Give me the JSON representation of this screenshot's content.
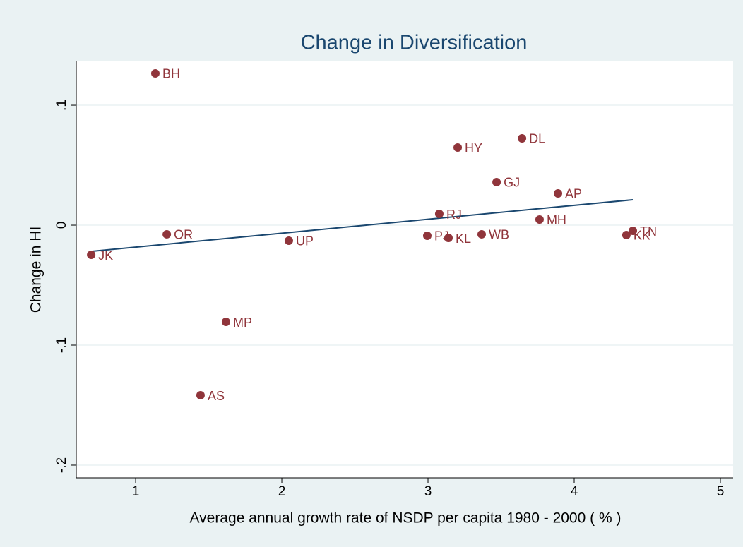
{
  "chart_data": {
    "type": "scatter",
    "title": "Change in Diversification",
    "x_label": "Average annual growth rate of NSDP per capita 1980 - 2000 ( % )",
    "y_label": "Change in HI",
    "labels": [
      "BH",
      "DL",
      "HY",
      "GJ",
      "AP",
      "RJ",
      "MH",
      "TN",
      "KK",
      "OR",
      "PJ",
      "KL",
      "WB",
      "UP",
      "JK",
      "MP",
      "AS"
    ],
    "x": [
      1.135,
      3.643,
      3.203,
      3.469,
      3.889,
      3.077,
      3.763,
      4.401,
      4.357,
      1.213,
      2.995,
      3.14,
      3.367,
      2.048,
      0.696,
      1.618,
      1.444
    ],
    "y": [
      0.1265,
      0.0724,
      0.0647,
      0.0359,
      0.0265,
      0.0094,
      0.0047,
      -0.0047,
      -0.0082,
      -0.0076,
      -0.0088,
      -0.0106,
      -0.0076,
      -0.0129,
      -0.0247,
      -0.0806,
      -0.1418
    ],
    "color": "#90353b",
    "fit_line": {
      "x": [
        0.696,
        4.401
      ],
      "y": [
        -0.0218,
        0.0212
      ],
      "color": "#1a476f"
    },
    "xlim": [
      0.594,
      5.087
    ],
    "ylim": [
      -0.2106,
      0.1365
    ],
    "xticks": [
      1,
      2,
      3,
      4,
      5
    ],
    "yticks": [
      {
        "value": -0.2,
        "label": "-.2"
      },
      {
        "value": -0.1,
        "label": "-.1"
      },
      0,
      {
        "value": 0.1,
        "label": ".1"
      }
    ],
    "grid": true
  }
}
